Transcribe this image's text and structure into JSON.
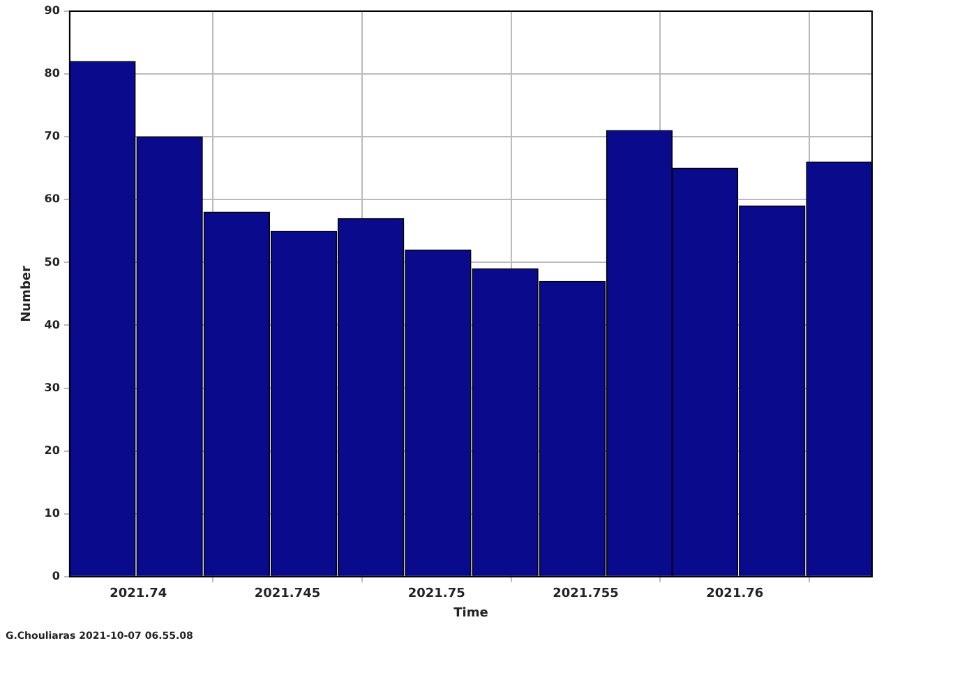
{
  "chart_data": {
    "type": "histogram",
    "xlabel": "Time",
    "ylabel": "Number",
    "bins": [
      2021.7377,
      2021.7399,
      2021.7422,
      2021.7444,
      2021.7467,
      2021.7489,
      2021.7512,
      2021.7534,
      2021.7557,
      2021.7579,
      2021.7601,
      2021.7624,
      2021.7646
    ],
    "values": [
      82,
      70,
      58,
      55,
      57,
      52,
      49,
      47,
      71,
      65,
      59,
      66
    ],
    "color": "#0a0a8c",
    "xlim": [
      2021.7377,
      2021.7646
    ],
    "xticks": [
      2021.74,
      2021.745,
      2021.75,
      2021.755,
      2021.76
    ],
    "ylim": [
      0,
      90
    ],
    "yticks": [
      0,
      10,
      20,
      30,
      40,
      50,
      60,
      70,
      80,
      90
    ],
    "grid": true,
    "annotations": [
      "G.Chouliaras 2021-10-07 06.55.08"
    ]
  }
}
